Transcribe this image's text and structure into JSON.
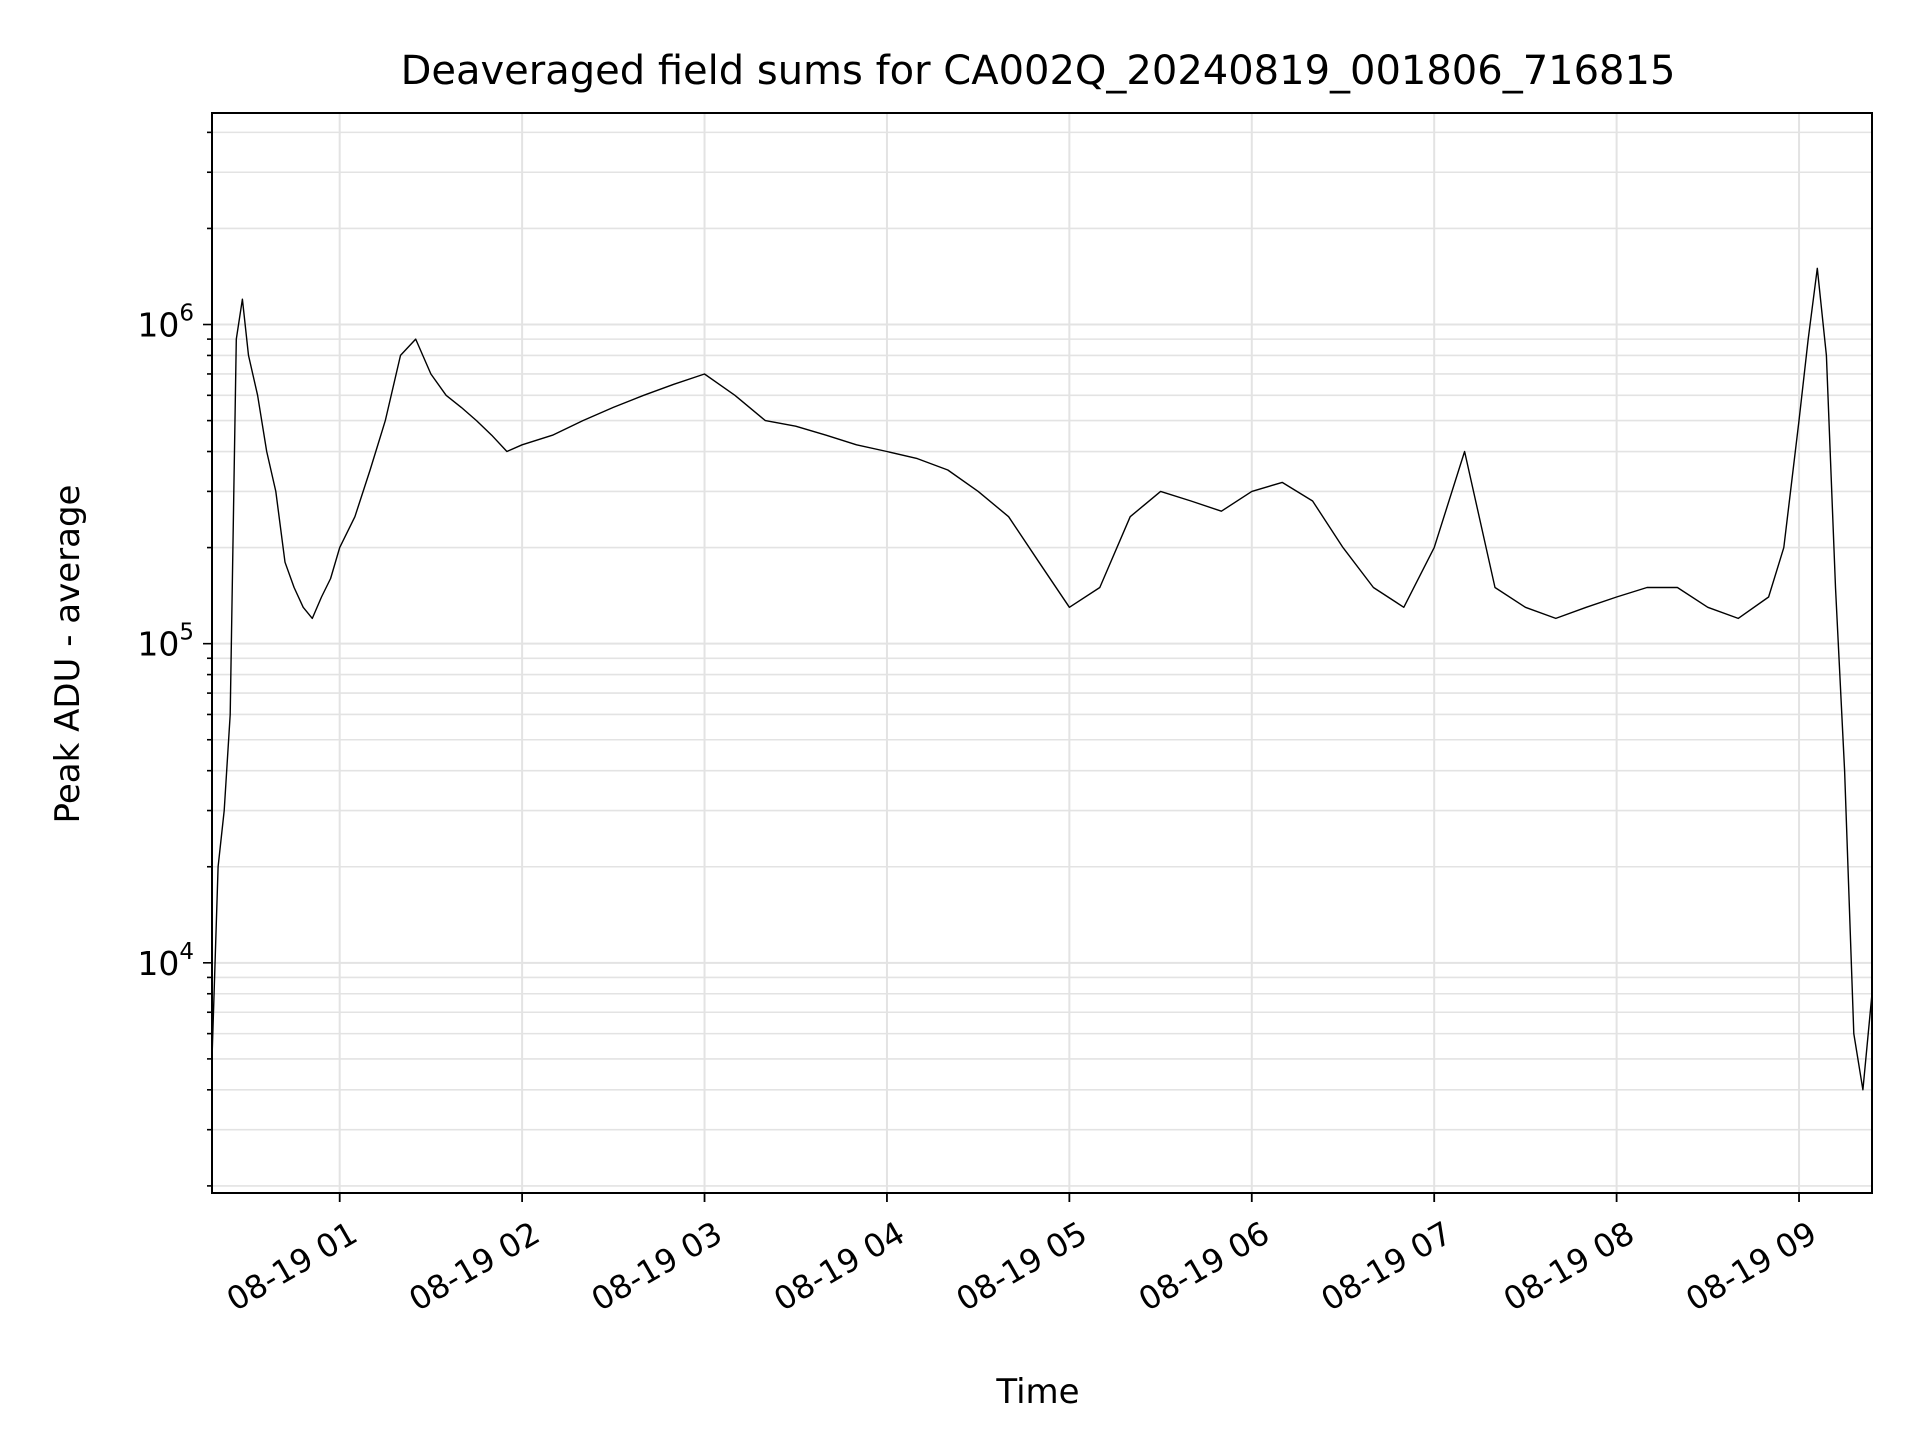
{
  "chart_data": {
    "type": "line",
    "title": "Deaveraged field sums for CA002Q_20240819_001806_716815",
    "xlabel": "Time",
    "ylabel": "Peak ADU - average",
    "yscale": "log",
    "xlim": [
      "2024-08-19 00:18",
      "2024-08-19 09:24"
    ],
    "ylim": [
      1900,
      4600000
    ],
    "grid": true,
    "line_color": "#000000",
    "grid_color": "#e3e3e3",
    "x_ticks": [
      {
        "value": "2024-08-19 01:00",
        "label": "08-19 01"
      },
      {
        "value": "2024-08-19 02:00",
        "label": "08-19 02"
      },
      {
        "value": "2024-08-19 03:00",
        "label": "08-19 03"
      },
      {
        "value": "2024-08-19 04:00",
        "label": "08-19 04"
      },
      {
        "value": "2024-08-19 05:00",
        "label": "08-19 05"
      },
      {
        "value": "2024-08-19 06:00",
        "label": "08-19 06"
      },
      {
        "value": "2024-08-19 07:00",
        "label": "08-19 07"
      },
      {
        "value": "2024-08-19 08:00",
        "label": "08-19 08"
      },
      {
        "value": "2024-08-19 09:00",
        "label": "08-19 09"
      }
    ],
    "y_ticks": [
      {
        "value": 10000,
        "base": "10",
        "exp": "4"
      },
      {
        "value": 100000,
        "base": "10",
        "exp": "5"
      },
      {
        "value": 1000000,
        "base": "10",
        "exp": "6"
      }
    ],
    "series": [
      {
        "x": [
          "2024-08-19 00:18",
          "2024-08-19 00:20",
          "2024-08-19 00:22",
          "2024-08-19 00:24",
          "2024-08-19 00:26",
          "2024-08-19 00:28",
          "2024-08-19 00:30",
          "2024-08-19 00:33",
          "2024-08-19 00:36",
          "2024-08-19 00:39",
          "2024-08-19 00:42",
          "2024-08-19 00:45",
          "2024-08-19 00:48",
          "2024-08-19 00:51",
          "2024-08-19 00:54",
          "2024-08-19 00:57",
          "2024-08-19 01:00",
          "2024-08-19 01:05",
          "2024-08-19 01:10",
          "2024-08-19 01:15",
          "2024-08-19 01:20",
          "2024-08-19 01:25",
          "2024-08-19 01:30",
          "2024-08-19 01:35",
          "2024-08-19 01:40",
          "2024-08-19 01:45",
          "2024-08-19 01:50",
          "2024-08-19 01:55",
          "2024-08-19 02:00",
          "2024-08-19 02:10",
          "2024-08-19 02:20",
          "2024-08-19 02:30",
          "2024-08-19 02:40",
          "2024-08-19 02:50",
          "2024-08-19 03:00",
          "2024-08-19 03:10",
          "2024-08-19 03:20",
          "2024-08-19 03:30",
          "2024-08-19 03:40",
          "2024-08-19 03:50",
          "2024-08-19 04:00",
          "2024-08-19 04:10",
          "2024-08-19 04:20",
          "2024-08-19 04:30",
          "2024-08-19 04:40",
          "2024-08-19 04:50",
          "2024-08-19 05:00",
          "2024-08-19 05:10",
          "2024-08-19 05:20",
          "2024-08-19 05:30",
          "2024-08-19 05:40",
          "2024-08-19 05:50",
          "2024-08-19 06:00",
          "2024-08-19 06:10",
          "2024-08-19 06:20",
          "2024-08-19 06:30",
          "2024-08-19 06:40",
          "2024-08-19 06:50",
          "2024-08-19 07:00",
          "2024-08-19 07:10",
          "2024-08-19 07:20",
          "2024-08-19 07:30",
          "2024-08-19 07:40",
          "2024-08-19 07:50",
          "2024-08-19 08:00",
          "2024-08-19 08:10",
          "2024-08-19 08:20",
          "2024-08-19 08:30",
          "2024-08-19 08:40",
          "2024-08-19 08:50",
          "2024-08-19 08:55",
          "2024-08-19 09:00",
          "2024-08-19 09:03",
          "2024-08-19 09:06",
          "2024-08-19 09:09",
          "2024-08-19 09:12",
          "2024-08-19 09:15",
          "2024-08-19 09:18",
          "2024-08-19 09:21",
          "2024-08-19 09:24"
        ],
        "y": [
          5000,
          20000,
          30000,
          60000,
          900000,
          1200000,
          800000,
          600000,
          400000,
          300000,
          180000,
          150000,
          130000,
          120000,
          140000,
          160000,
          200000,
          250000,
          350000,
          500000,
          800000,
          900000,
          700000,
          600000,
          550000,
          500000,
          450000,
          400000,
          420000,
          450000,
          500000,
          550000,
          600000,
          650000,
          700000,
          600000,
          500000,
          480000,
          450000,
          420000,
          400000,
          380000,
          350000,
          300000,
          250000,
          180000,
          130000,
          150000,
          250000,
          300000,
          280000,
          260000,
          300000,
          320000,
          280000,
          200000,
          150000,
          130000,
          200000,
          400000,
          150000,
          130000,
          120000,
          130000,
          140000,
          150000,
          150000,
          130000,
          120000,
          140000,
          200000,
          500000,
          900000,
          1500000,
          800000,
          150000,
          40000,
          6000,
          4000,
          8000
        ]
      }
    ]
  }
}
